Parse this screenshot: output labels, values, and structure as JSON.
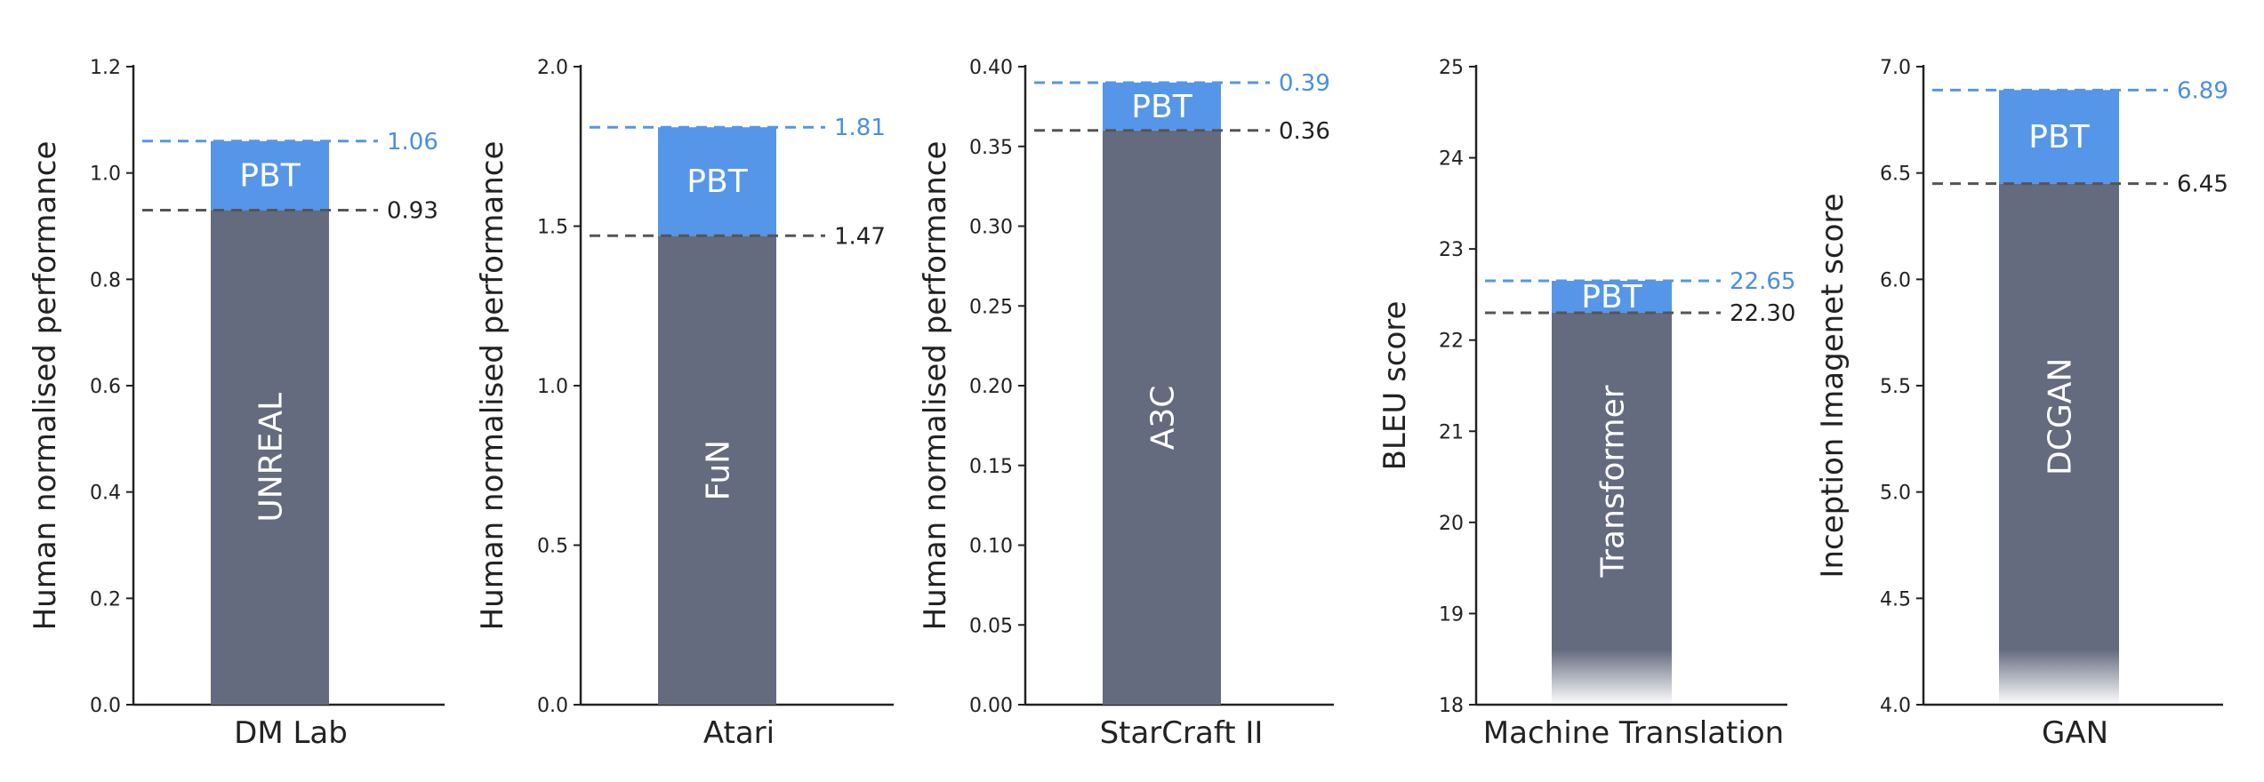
{
  "colors": {
    "baseline_bar": "#646b7f",
    "pbt_bar": "#5596e8",
    "pbt_line": "#5596e8",
    "pbt_value": "#4a8fe0",
    "baseline_line": "#555555",
    "baseline_value": "#222222"
  },
  "chart_data": [
    {
      "type": "bar",
      "xlabel": "DM Lab",
      "ylabel": "Human normalised performance",
      "ylim": [
        0.0,
        1.2
      ],
      "yticks": [
        "0.0",
        "0.2",
        "0.4",
        "0.6",
        "0.8",
        "1.0",
        "1.2"
      ],
      "baseline": {
        "name": "UNREAL",
        "value": 0.93,
        "label": "0.93"
      },
      "pbt": {
        "name": "PBT",
        "value": 1.06,
        "label": "1.06"
      },
      "truncated_axis": false
    },
    {
      "type": "bar",
      "xlabel": "Atari",
      "ylabel": "Human normalised performance",
      "ylim": [
        0.0,
        2.0
      ],
      "yticks": [
        "0.0",
        "0.5",
        "1.0",
        "1.5",
        "2.0"
      ],
      "baseline": {
        "name": "FuN",
        "value": 1.47,
        "label": "1.47"
      },
      "pbt": {
        "name": "PBT",
        "value": 1.81,
        "label": "1.81"
      },
      "truncated_axis": false
    },
    {
      "type": "bar",
      "xlabel": "StarCraft II",
      "ylabel": "Human normalised performance",
      "ylim": [
        0.0,
        0.4
      ],
      "yticks": [
        "0.00",
        "0.05",
        "0.10",
        "0.15",
        "0.20",
        "0.25",
        "0.30",
        "0.35",
        "0.40"
      ],
      "baseline": {
        "name": "A3C",
        "value": 0.36,
        "label": "0.36"
      },
      "pbt": {
        "name": "PBT",
        "value": 0.39,
        "label": "0.39"
      },
      "truncated_axis": false
    },
    {
      "type": "bar",
      "xlabel": "Machine Translation",
      "ylabel": "BLEU score",
      "ylim": [
        18,
        25
      ],
      "yticks": [
        "18",
        "19",
        "20",
        "21",
        "22",
        "23",
        "24",
        "25"
      ],
      "baseline": {
        "name": "Transformer",
        "value": 22.3,
        "label": "22.30"
      },
      "pbt": {
        "name": "PBT",
        "value": 22.65,
        "label": "22.65"
      },
      "truncated_axis": true
    },
    {
      "type": "bar",
      "xlabel": "GAN",
      "ylabel": "Inception Imagenet score",
      "ylim": [
        4.0,
        7.0
      ],
      "yticks": [
        "4.0",
        "4.5",
        "5.0",
        "5.5",
        "6.0",
        "6.5",
        "7.0"
      ],
      "baseline": {
        "name": "DCGAN",
        "value": 6.45,
        "label": "6.45"
      },
      "pbt": {
        "name": "PBT",
        "value": 6.89,
        "label": "6.89"
      },
      "truncated_axis": true
    }
  ]
}
